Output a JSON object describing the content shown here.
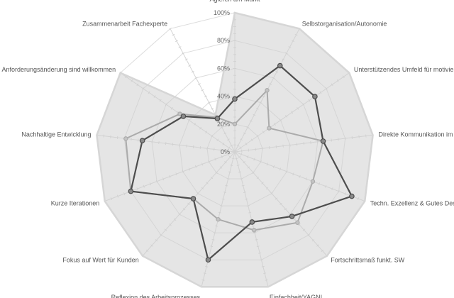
{
  "chart_data": {
    "type": "radar",
    "axes": [
      "Agieren am Markt",
      "Selbstorganisation/Autonomie",
      "Unterstützendes Umfeld für motivierte",
      "Direkte Kommunikation im Te",
      "Techn. Exzellenz & Gutes Design",
      "Fortschrittsmaß funkt. SW",
      "Einfachheit/YAGNI",
      "Reflexion des Arbeitsprozesses",
      "Fokus auf Wert für Kunden",
      "Kurze Iterationen",
      "Nachhaltige Entwicklung",
      "Anforderungsänderung sind willkommen",
      "Zusammenarbeit Fachexperte"
    ],
    "ticks": [
      "0%",
      "20%",
      "40%",
      "60%",
      "80%",
      "100%"
    ],
    "rmax": 100,
    "series": [
      {
        "color": "#c8c8c8",
        "stroke": "#d6d6d6",
        "fill": "#d0d0d0",
        "fill_opacity": 0.55,
        "values": [
          100,
          100,
          100,
          100,
          100,
          100,
          100,
          100,
          100,
          100,
          100,
          100,
          30
        ]
      },
      {
        "color": "#b3b3b3",
        "stroke": "#ababab",
        "fill": "none",
        "values": [
          20,
          50,
          30,
          64,
          60,
          68,
          58,
          50,
          45,
          80,
          79,
          48,
          28
        ]
      },
      {
        "color": "#505050",
        "stroke": "#4d4d4d",
        "fill": "none",
        "values": [
          38,
          70,
          70,
          64,
          90,
          62,
          52,
          80,
          45,
          80,
          67,
          45,
          27
        ]
      }
    ]
  }
}
